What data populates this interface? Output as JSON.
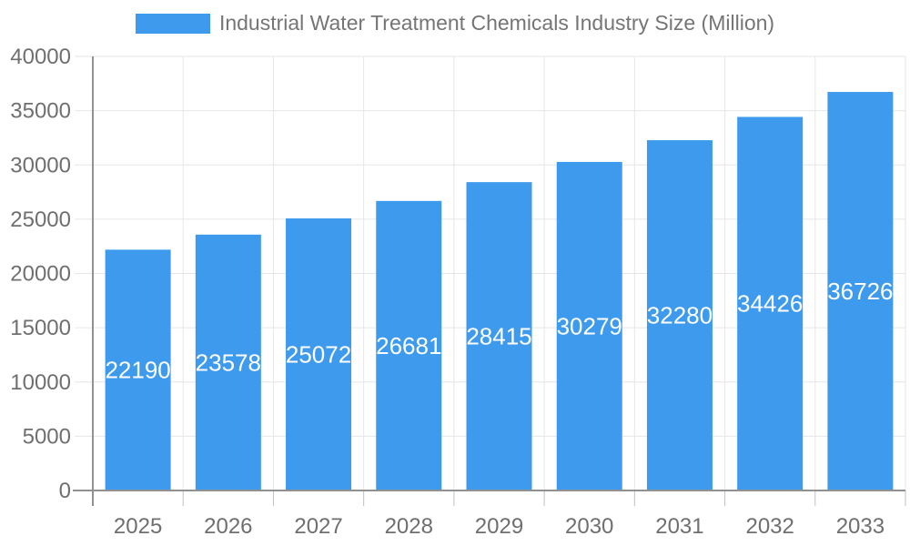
{
  "legend": {
    "label": "Industrial Water Treatment Chemicals Industry Size (Million)",
    "swatch_color": "#3D9AEC"
  },
  "chart_data": {
    "type": "bar",
    "title": "Industrial Water Treatment Chemicals Industry Size (Million)",
    "categories": [
      "2025",
      "2026",
      "2027",
      "2028",
      "2029",
      "2030",
      "2031",
      "2032",
      "2033"
    ],
    "values": [
      22190,
      23578,
      25072,
      26681,
      28415,
      30279,
      32280,
      34426,
      36726
    ],
    "xlabel": "",
    "ylabel": "",
    "ylim": [
      0,
      40000
    ],
    "ytick_interval": 5000,
    "yticks": [
      0,
      5000,
      10000,
      15000,
      20000,
      25000,
      30000,
      35000,
      40000
    ],
    "grid": true,
    "legend_position": "top-center",
    "colors": {
      "bar": "#3D9AEC",
      "bar_value_label": "#ffffff",
      "axis_label": "#6f6f6f",
      "gridline": "#e6e6e6",
      "tick": "#c0c0c0",
      "axis_line": "#919191"
    }
  }
}
